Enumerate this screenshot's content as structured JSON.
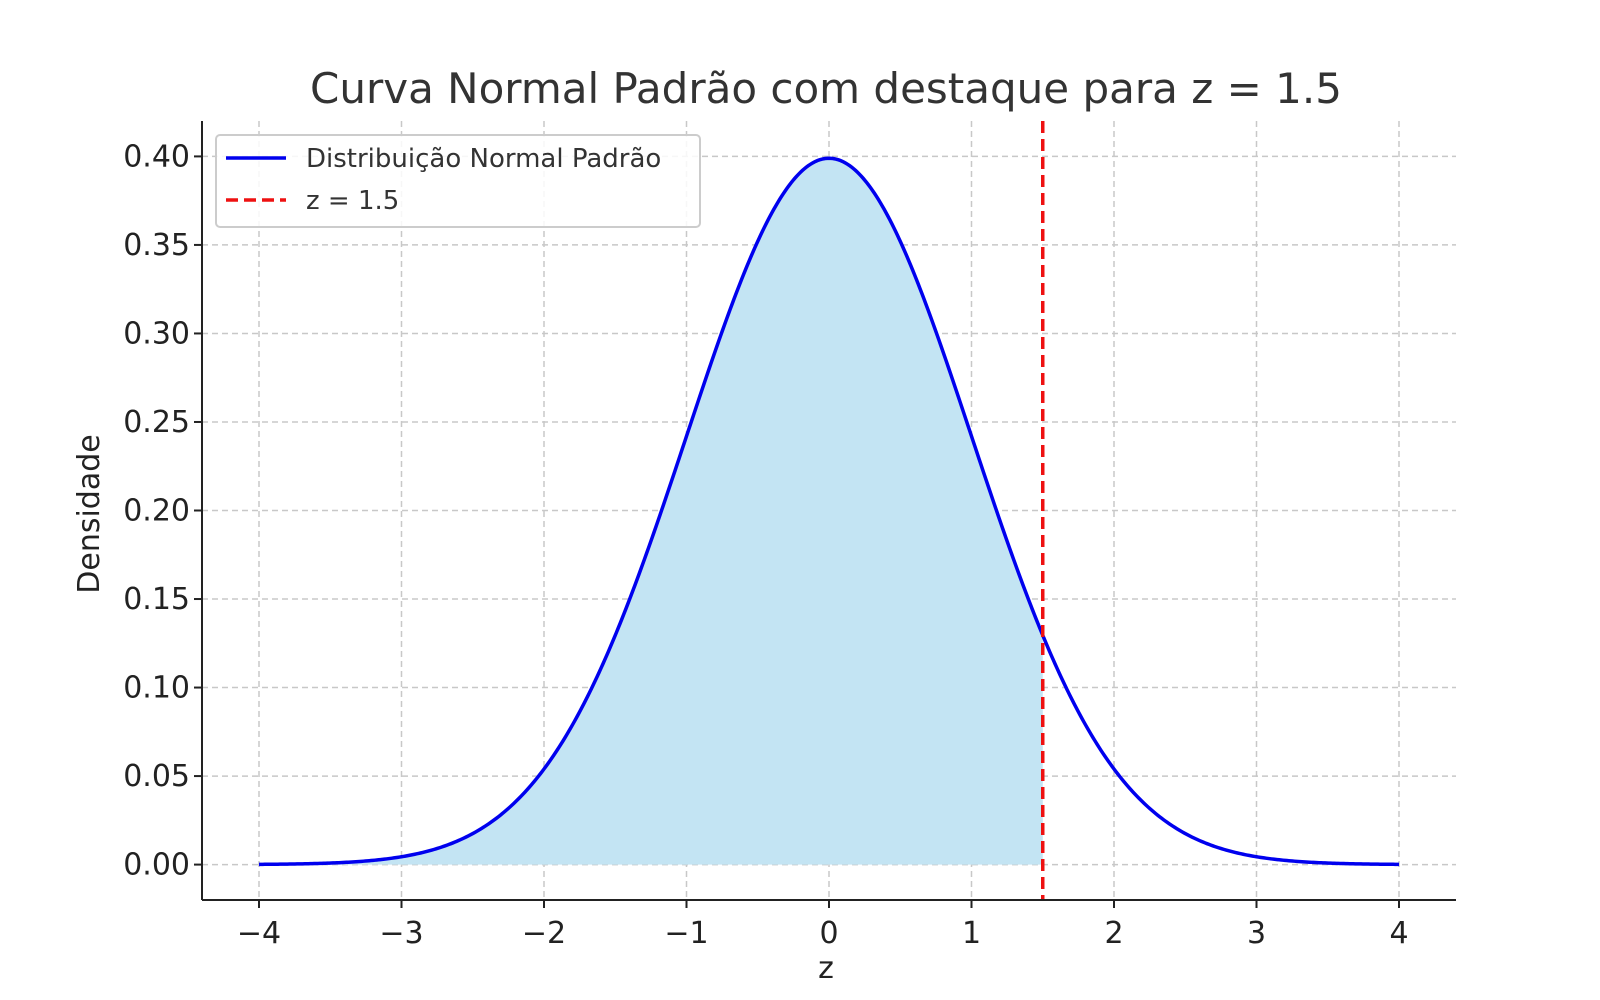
{
  "chart_data": {
    "type": "area",
    "title": "Curva Normal Padrão com destaque para z = 1.5",
    "xlabel": "z",
    "ylabel": "Densidade",
    "xlim": [
      -4.4,
      4.4
    ],
    "ylim": [
      -0.02,
      0.42
    ],
    "x_ticks": [
      -4,
      -3,
      -2,
      -1,
      0,
      1,
      2,
      3,
      4
    ],
    "x_tick_labels": [
      "−4",
      "−3",
      "−2",
      "−1",
      "0",
      "1",
      "2",
      "3",
      "4"
    ],
    "y_ticks": [
      0.0,
      0.05,
      0.1,
      0.15,
      0.2,
      0.25,
      0.3,
      0.35,
      0.4
    ],
    "y_tick_labels": [
      "0.00",
      "0.05",
      "0.10",
      "0.15",
      "0.20",
      "0.25",
      "0.30",
      "0.35",
      "0.40"
    ],
    "grid": true,
    "legend_position": "top-left",
    "series": [
      {
        "name": "Distribuição Normal Padrão",
        "kind": "line",
        "color": "#0000ee",
        "x": [
          -4.0,
          -3.5,
          -3.0,
          -2.5,
          -2.0,
          -1.5,
          -1.0,
          -0.5,
          0.0,
          0.5,
          1.0,
          1.5,
          2.0,
          2.5,
          3.0,
          3.5,
          4.0
        ],
        "y": [
          0.0001,
          0.0009,
          0.0044,
          0.0175,
          0.054,
          0.1295,
          0.242,
          0.3521,
          0.3989,
          0.3521,
          0.242,
          0.1295,
          0.054,
          0.0175,
          0.0044,
          0.0009,
          0.0001
        ]
      },
      {
        "name": "z = 1.5",
        "kind": "vline",
        "color": "#ee1111",
        "x": 1.5
      }
    ],
    "shaded_region": {
      "from": -4.0,
      "to": 1.5,
      "color": "#c3e4f3"
    }
  }
}
